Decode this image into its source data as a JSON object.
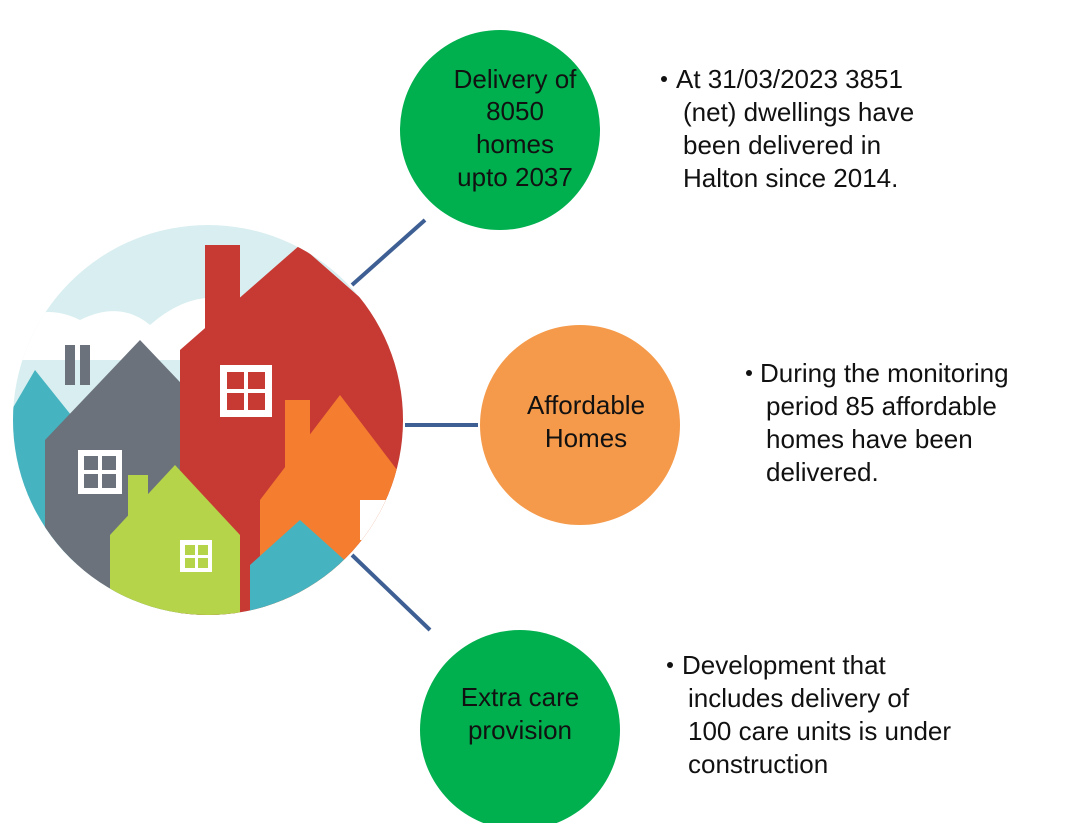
{
  "nodes": [
    {
      "label": [
        "Delivery of",
        "8050",
        "homes",
        "upto 2037"
      ],
      "note": [
        "At 31/03/2023 3851",
        "(net) dwellings have",
        "been delivered in",
        "Halton since 2014."
      ]
    },
    {
      "label": [
        "Affordable",
        "Homes"
      ],
      "note": [
        "During the monitoring",
        "period 85 affordable",
        "homes have been",
        "delivered."
      ]
    },
    {
      "label": [
        "Extra care",
        "provision"
      ],
      "note": [
        "Development that",
        "includes delivery of",
        "100 care units is under",
        "construction"
      ]
    }
  ]
}
